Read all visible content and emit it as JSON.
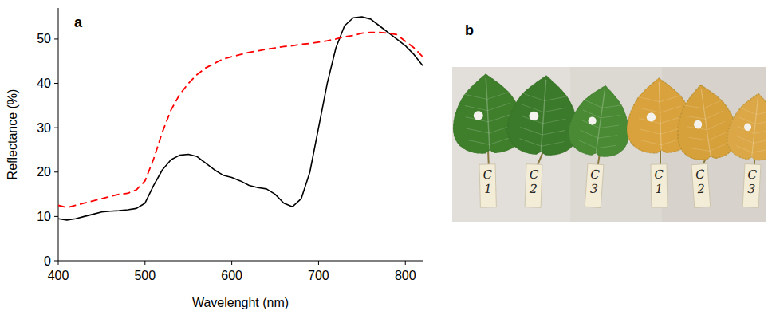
{
  "chart_data": {
    "type": "line",
    "x_label": "Wavelenght (nm)",
    "y_label": "Reflectance (%)",
    "x": [
      400,
      410,
      420,
      430,
      440,
      450,
      460,
      470,
      480,
      490,
      500,
      510,
      520,
      530,
      540,
      550,
      560,
      570,
      580,
      590,
      600,
      610,
      620,
      630,
      640,
      650,
      660,
      670,
      680,
      690,
      700,
      710,
      720,
      730,
      740,
      750,
      760,
      770,
      780,
      790,
      800,
      810,
      820
    ],
    "series": [
      {
        "color": "#000000",
        "line_style": "solid",
        "values": [
          9.5,
          9.2,
          9.5,
          10,
          10.5,
          11,
          11.2,
          11.3,
          11.5,
          11.8,
          13,
          17,
          20.5,
          22.8,
          23.8,
          24,
          23.5,
          22,
          20.5,
          19.3,
          18.8,
          18,
          17,
          16.5,
          16.2,
          15,
          13,
          12.2,
          14,
          20,
          30,
          40,
          48,
          53,
          54.8,
          55,
          54.5,
          53,
          51.5,
          50,
          48.5,
          46.5,
          44
        ]
      },
      {
        "color": "#ff0000",
        "line_style": "dashed",
        "values": [
          12.5,
          12,
          12.5,
          13,
          13.5,
          14,
          14.5,
          15,
          15.2,
          16,
          18,
          23,
          29,
          34,
          37.5,
          40,
          42,
          43.5,
          44.5,
          45.5,
          46,
          46.5,
          47,
          47.3,
          47.7,
          48,
          48.3,
          48.5,
          48.8,
          49,
          49.3,
          49.6,
          50,
          50.5,
          50.8,
          51.3,
          51.5,
          51.5,
          51.3,
          51,
          49.5,
          48,
          46
        ]
      }
    ],
    "xlim": [
      400,
      820
    ],
    "xticks": [
      400,
      500,
      600,
      700,
      800
    ],
    "ylim": [
      0,
      57
    ],
    "yticks": [
      0,
      10,
      20,
      30,
      40,
      50
    ],
    "grid": false
  },
  "panel_labels": [
    "a",
    "b"
  ],
  "photo": {
    "labels": [
      "C1",
      "C2",
      "C3",
      "C1",
      "C2",
      "C3"
    ],
    "colors": [
      "#3f7f2c",
      "#3b7a2a",
      "#4a8a34",
      "#d9a23c",
      "#d6a03a",
      "#dca847"
    ]
  }
}
